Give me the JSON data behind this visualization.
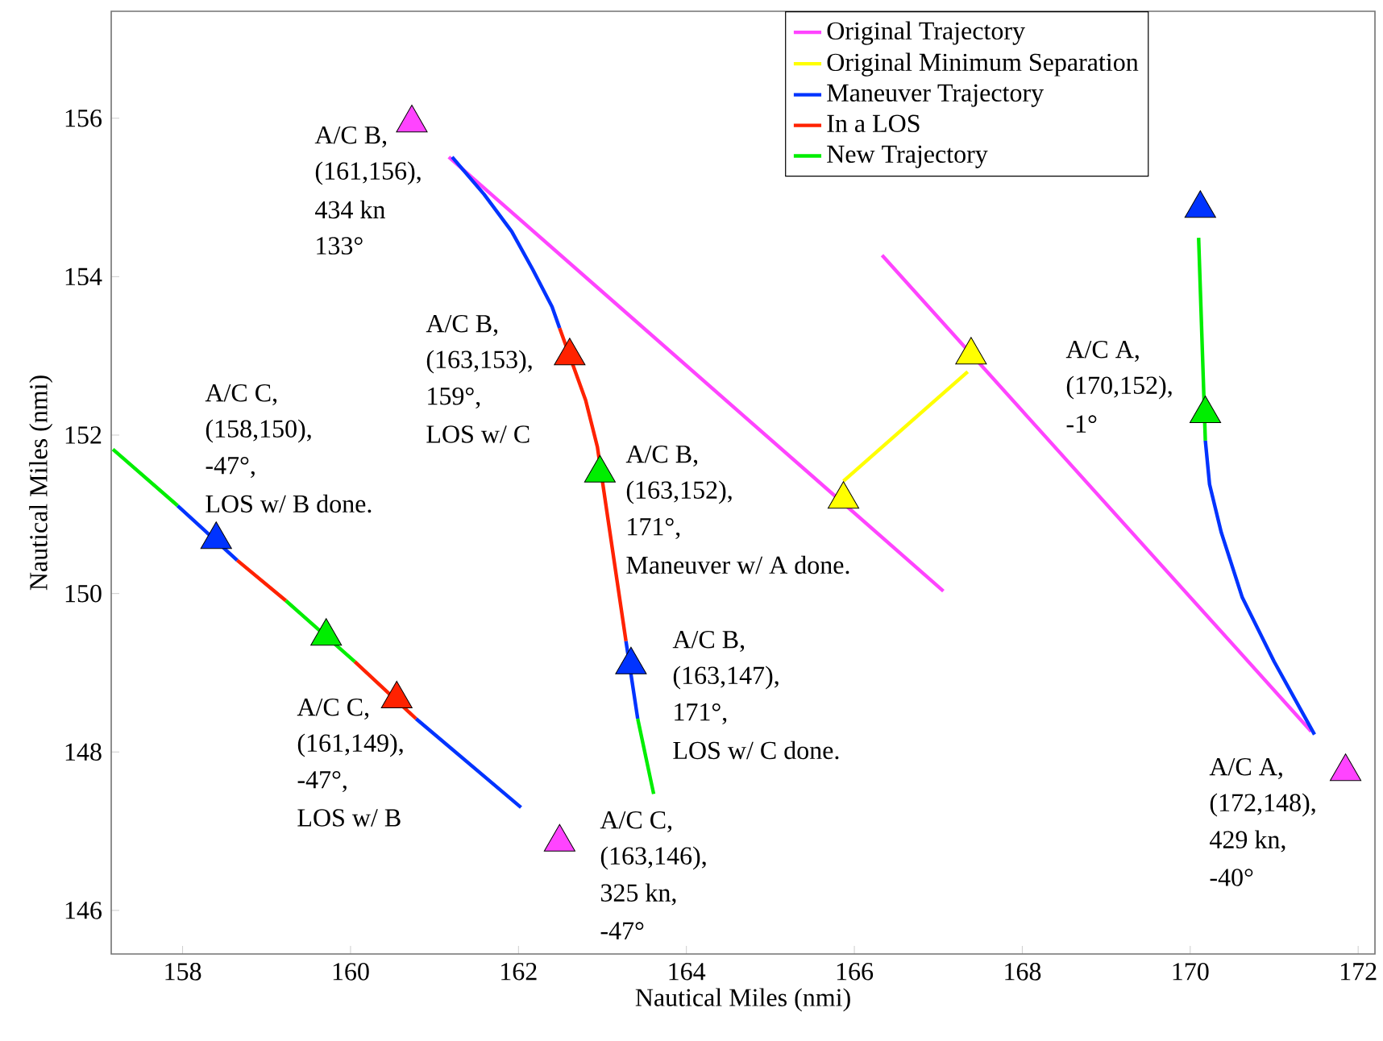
{
  "chart_data": {
    "type": "line",
    "xlabel": "Nautical Miles (nmi)",
    "ylabel": "Nautical Miles (nmi)",
    "xlim": [
      157.15,
      172.2
    ],
    "ylim": [
      145.45,
      157.35
    ],
    "xticks": [
      158,
      160,
      162,
      164,
      166,
      168,
      170,
      172
    ],
    "yticks": [
      146,
      148,
      150,
      152,
      154,
      156
    ],
    "legend": "top right",
    "series": [
      {
        "name": "Original Trajectory",
        "color": "#ff44ff",
        "x": [
          161.17,
          167.06,
          null,
          166.33,
          171.44
        ],
        "values": [
          155.51,
          150.03,
          null,
          154.27,
          148.26
        ]
      },
      {
        "name": "Original Minimum Separation",
        "color": "#ffff00",
        "x": [
          165.87,
          167.35
        ],
        "values": [
          151.42,
          152.8
        ]
      },
      {
        "name": "Maneuver Trajectory",
        "color": "#0033ff",
        "x": [
          161.21,
          161.59,
          161.92,
          162.17,
          162.4,
          162.49,
          null,
          163.28,
          163.42,
          null,
          171.48,
          171.0,
          170.62,
          170.37,
          170.23,
          170.18,
          null,
          157.94,
          158.65,
          null,
          160.78,
          162.03
        ],
        "values": [
          155.51,
          155.04,
          154.57,
          154.09,
          153.62,
          153.35,
          null,
          149.4,
          148.42,
          null,
          148.22,
          149.14,
          149.95,
          150.77,
          151.38,
          151.93,
          null,
          151.11,
          150.42,
          null,
          148.42,
          147.3
        ]
      },
      {
        "name": "In a LOS",
        "color": "#ff2200",
        "x": [
          162.49,
          162.8,
          162.94,
          163.07,
          163.28,
          null,
          158.65,
          159.23,
          null,
          160.05,
          160.78
        ],
        "values": [
          153.35,
          152.44,
          151.85,
          150.91,
          149.4,
          null,
          150.42,
          149.91,
          null,
          149.14,
          148.42
        ]
      },
      {
        "name": "New Trajectory",
        "color": "#00ee00",
        "x": [
          163.42,
          163.61,
          null,
          170.18,
          170.1,
          null,
          157.17,
          157.94,
          null,
          159.23,
          160.05
        ],
        "values": [
          148.42,
          147.47,
          null,
          151.93,
          154.49,
          null,
          151.82,
          151.11,
          null,
          149.91,
          149.14
        ]
      },
      {
        "type": "scatter",
        "marker": "triangle",
        "color": "#ff44ff",
        "x": [
          160.73,
          162.49,
          171.85
        ],
        "values": [
          155.94,
          146.86,
          147.75
        ]
      },
      {
        "type": "scatter",
        "marker": "triangle",
        "color": "#ffff00",
        "x": [
          167.39,
          165.87
        ],
        "values": [
          153.01,
          151.19
        ]
      },
      {
        "type": "scatter",
        "marker": "triangle",
        "color": "#0033ff",
        "x": [
          163.34,
          158.4,
          170.12
        ],
        "values": [
          149.1,
          150.68,
          154.86
        ]
      },
      {
        "type": "scatter",
        "marker": "triangle",
        "color": "#ff2200",
        "x": [
          162.61,
          160.55
        ],
        "values": [
          153.0,
          148.67
        ]
      },
      {
        "type": "scatter",
        "marker": "triangle",
        "color": "#00ee00",
        "x": [
          162.97,
          159.71,
          170.18
        ],
        "values": [
          151.52,
          149.46,
          152.27
        ]
      }
    ],
    "annotations": [
      "A/C B,",
      "(161,156),",
      "434 kn",
      "133°",
      "A/C B,",
      "(163,153),",
      "159°,",
      "LOS w/ C",
      "A/C C,",
      "(158,150),",
      "-47°,",
      "LOS w/ B done.",
      "A/C B,",
      "(163,152),",
      "171°,",
      "Maneuver w/ A done.",
      "A/C A,",
      "(170,152),",
      "-1°",
      "A/C B,",
      "(163,147),",
      "171°,",
      "LOS w/ C done.",
      "A/C C,",
      "(161,149),",
      "-47°,",
      "LOS w/ B",
      "A/C C,",
      "(163,146),",
      "325 kn,",
      "-47°",
      "A/C A,",
      "(172,148),",
      "429 kn,",
      "-40°"
    ]
  }
}
